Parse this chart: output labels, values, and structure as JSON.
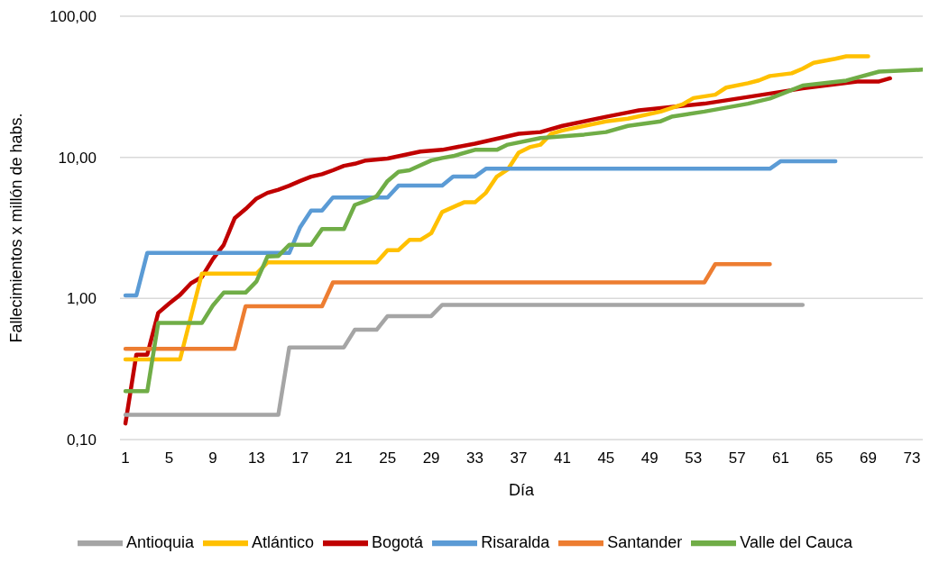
{
  "chart_data": {
    "type": "line",
    "xlabel": "Día",
    "ylabel": "Fallecimientos x millón de habs.",
    "log": "y",
    "grid": "y",
    "legend": "bottom",
    "marker": "none",
    "line_style": "solid",
    "xlim": [
      0.5,
      74
    ],
    "xticks": [
      1,
      5,
      9,
      13,
      17,
      21,
      25,
      29,
      33,
      37,
      41,
      45,
      49,
      53,
      57,
      61,
      65,
      69,
      73
    ],
    "ylim": [
      0.1,
      100
    ],
    "yticks": [
      {
        "value": 0.1,
        "label": "0,10"
      },
      {
        "value": 1,
        "label": "1,00"
      },
      {
        "value": 10,
        "label": "10,00"
      },
      {
        "value": 100,
        "label": "100,00"
      }
    ],
    "series": [
      {
        "name": "Bogotá",
        "color": "#c00000",
        "x": [
          1,
          2,
          3,
          4,
          5,
          6,
          7,
          8,
          9,
          10,
          11,
          12,
          13,
          14,
          15,
          16,
          17,
          18,
          19,
          20,
          21,
          22,
          23,
          25,
          28,
          30,
          33,
          37,
          39,
          41,
          45,
          47,
          48,
          54,
          60,
          63,
          68,
          70,
          71
        ],
        "values": [
          0.13,
          0.4,
          0.4,
          0.79,
          0.92,
          1.06,
          1.28,
          1.42,
          1.9,
          2.4,
          3.7,
          4.3,
          5.1,
          5.6,
          5.9,
          6.3,
          6.8,
          7.3,
          7.6,
          8.1,
          8.7,
          9.0,
          9.5,
          9.8,
          11.0,
          11.3,
          12.5,
          14.7,
          15.1,
          16.7,
          19.4,
          20.8,
          21.5,
          24.0,
          28.3,
          30.8,
          34.5,
          34.5,
          36.3
        ]
      },
      {
        "name": "Antioquia",
        "color": "#a5a5a5",
        "x": [
          1,
          15,
          16,
          21,
          22,
          24,
          25,
          29,
          30,
          63
        ],
        "values": [
          0.15,
          0.15,
          0.45,
          0.45,
          0.6,
          0.6,
          0.75,
          0.75,
          0.9,
          0.9
        ]
      },
      {
        "name": "Atlántico",
        "color": "#ffc000",
        "x": [
          1,
          6,
          8,
          13,
          14,
          24,
          25,
          26,
          27,
          28,
          29,
          30,
          32,
          33,
          34,
          35,
          36,
          37,
          38,
          39,
          40,
          41,
          45,
          47,
          50,
          52,
          53,
          55,
          56,
          58,
          59,
          60,
          62,
          63,
          64,
          66,
          67,
          69
        ],
        "values": [
          0.37,
          0.37,
          1.5,
          1.5,
          1.8,
          1.8,
          2.2,
          2.2,
          2.6,
          2.6,
          2.9,
          4.1,
          4.8,
          4.8,
          5.6,
          7.3,
          8.2,
          10.8,
          11.8,
          12.3,
          14.7,
          15.5,
          18.0,
          18.8,
          21.1,
          23.7,
          26.3,
          27.8,
          31.2,
          33.5,
          35.1,
          37.7,
          39.4,
          42.5,
          46.8,
          49.9,
          52,
          52
        ]
      },
      {
        "name": "Risaralda",
        "color": "#5b9bd5",
        "x": [
          1,
          2,
          3,
          16,
          17,
          18,
          19,
          20,
          25,
          26,
          30,
          31,
          33,
          34,
          60,
          61,
          66
        ],
        "values": [
          1.05,
          1.05,
          2.1,
          2.1,
          3.2,
          4.2,
          4.2,
          5.2,
          5.2,
          6.3,
          6.3,
          7.3,
          7.3,
          8.3,
          8.3,
          9.4,
          9.4
        ]
      },
      {
        "name": "Santander",
        "color": "#ed7d31",
        "x": [
          1,
          11,
          12,
          19,
          20,
          54,
          55,
          60
        ],
        "values": [
          0.44,
          0.44,
          0.88,
          0.88,
          1.3,
          1.3,
          1.75,
          1.75
        ]
      },
      {
        "name": "Valle del Cauca",
        "color": "#70ad47",
        "x": [
          1,
          3,
          4,
          8,
          9,
          10,
          12,
          13,
          14,
          15,
          16,
          18,
          19,
          21,
          22,
          23,
          24,
          25,
          26,
          27,
          29,
          30,
          31,
          33,
          35,
          36,
          39,
          43,
          45,
          47,
          50,
          51,
          54,
          58,
          60,
          63,
          67,
          70,
          74
        ],
        "values": [
          0.22,
          0.22,
          0.67,
          0.67,
          0.89,
          1.1,
          1.1,
          1.32,
          1.98,
          2.0,
          2.4,
          2.4,
          3.1,
          3.1,
          4.6,
          4.9,
          5.3,
          6.8,
          7.9,
          8.1,
          9.5,
          9.9,
          10.2,
          11.3,
          11.3,
          12.3,
          13.7,
          14.5,
          15.1,
          16.7,
          18.0,
          19.4,
          21.1,
          24.0,
          26.1,
          32.2,
          35.0,
          40.5,
          41.8
        ]
      }
    ]
  }
}
